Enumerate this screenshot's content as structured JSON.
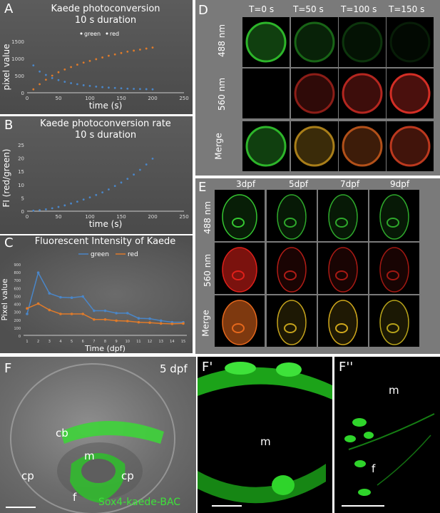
{
  "panels": {
    "A": {
      "letter": "A",
      "title_line1": "Kaede photoconversion",
      "title_line2": "10 s duration",
      "legend": [
        "green",
        "red"
      ],
      "xlabel": "time (s)",
      "ylabel": "pixel value",
      "xticks": [
        "0",
        "50",
        "100",
        "150",
        "200",
        "250"
      ],
      "yticks": [
        "0",
        "500",
        "1000",
        "1500"
      ]
    },
    "B": {
      "letter": "B",
      "title_line1": "Kaede photoconversion rate",
      "title_line2": "10 s duration",
      "xlabel": "time (s)",
      "ylabel": "FI (red/green)",
      "xticks": [
        "0",
        "50",
        "100",
        "150",
        "200",
        "250"
      ],
      "yticks": [
        "0",
        "5",
        "10",
        "15",
        "20",
        "25"
      ]
    },
    "C": {
      "letter": "C",
      "title": "Fluorescent Intensity of Kaede",
      "legend": [
        "green",
        "red"
      ],
      "xlabel": "Time (dpf)",
      "ylabel": "Pixel value",
      "xticks": [
        "1",
        "2",
        "3",
        "4",
        "5",
        "6",
        "7",
        "8",
        "9",
        "10",
        "11",
        "12",
        "13",
        "14",
        "15"
      ],
      "yticks": [
        "0",
        "100",
        "200",
        "300",
        "400",
        "500",
        "600",
        "700",
        "800",
        "900"
      ]
    },
    "D": {
      "letter": "D",
      "col_headers": [
        "T=0 s",
        "T=50 s",
        "T=100 s",
        "T=150 s"
      ],
      "row_labels": [
        "488 nm",
        "560 nm",
        "Merge"
      ]
    },
    "E": {
      "letter": "E",
      "col_headers": [
        "3dpf",
        "5dpf",
        "7dpf",
        "9dpf"
      ],
      "row_labels": [
        "488 nm",
        "560 nm",
        "Merge"
      ]
    },
    "F": {
      "letter": "F",
      "stage": "5 dpf",
      "labels": [
        "cb",
        "m",
        "cp",
        "cp",
        "f"
      ],
      "construct": "Sox4-kaede-BAC"
    },
    "F1": {
      "letter": "F'",
      "labels": [
        "m"
      ]
    },
    "F2": {
      "letter": "F''",
      "labels": [
        "m",
        "f"
      ]
    }
  },
  "colors": {
    "green_series": "#4a86c8",
    "red_series": "#e07b2a",
    "chart_bg": "#555555"
  },
  "chart_data": [
    {
      "type": "scatter",
      "title": "Kaede photoconversion 10 s duration",
      "xlabel": "time (s)",
      "ylabel": "pixel value",
      "xlim": [
        0,
        250
      ],
      "ylim": [
        0,
        1500
      ],
      "x": [
        10,
        20,
        30,
        40,
        50,
        60,
        70,
        80,
        90,
        100,
        110,
        120,
        130,
        140,
        150,
        160,
        170,
        180,
        190,
        200
      ],
      "series": [
        {
          "name": "green",
          "values": [
            800,
            620,
            520,
            430,
            370,
            320,
            280,
            250,
            220,
            200,
            180,
            165,
            150,
            140,
            130,
            120,
            115,
            110,
            105,
            100
          ]
        },
        {
          "name": "red",
          "values": [
            100,
            250,
            380,
            500,
            600,
            680,
            750,
            820,
            880,
            930,
            980,
            1030,
            1080,
            1120,
            1160,
            1200,
            1230,
            1260,
            1290,
            1320
          ]
        }
      ],
      "legend": "top-center"
    },
    {
      "type": "scatter",
      "title": "Kaede photoconversion rate 10 s duration",
      "xlabel": "time (s)",
      "ylabel": "FI (red/green)",
      "xlim": [
        0,
        250
      ],
      "ylim": [
        0,
        25
      ],
      "x": [
        10,
        20,
        30,
        40,
        50,
        60,
        70,
        80,
        90,
        100,
        110,
        120,
        130,
        140,
        150,
        160,
        170,
        180,
        190,
        200
      ],
      "series": [
        {
          "values": [
            0.2,
            0.4,
            0.7,
            1.1,
            1.6,
            2.2,
            2.9,
            3.6,
            4.4,
            5.2,
            6.1,
            7.1,
            8.2,
            9.5,
            10.8,
            12.2,
            13.8,
            15.6,
            17.6,
            19.8
          ]
        }
      ]
    },
    {
      "type": "line",
      "title": "Fluorescent Intensity of Kaede",
      "xlabel": "Time (dpf)",
      "ylabel": "Pixel value",
      "ylim": [
        0,
        900
      ],
      "categories": [
        "1",
        "2",
        "3",
        "4",
        "5",
        "6",
        "7",
        "8",
        "9",
        "10",
        "11",
        "12",
        "13",
        "14",
        "15"
      ],
      "series": [
        {
          "name": "green",
          "values": [
            270,
            790,
            530,
            480,
            475,
            490,
            310,
            310,
            280,
            280,
            215,
            210,
            185,
            165,
            165
          ]
        },
        {
          "name": "red",
          "values": [
            340,
            400,
            320,
            270,
            270,
            270,
            200,
            200,
            185,
            180,
            165,
            160,
            150,
            145,
            150
          ]
        }
      ],
      "legend": "top-center"
    }
  ]
}
